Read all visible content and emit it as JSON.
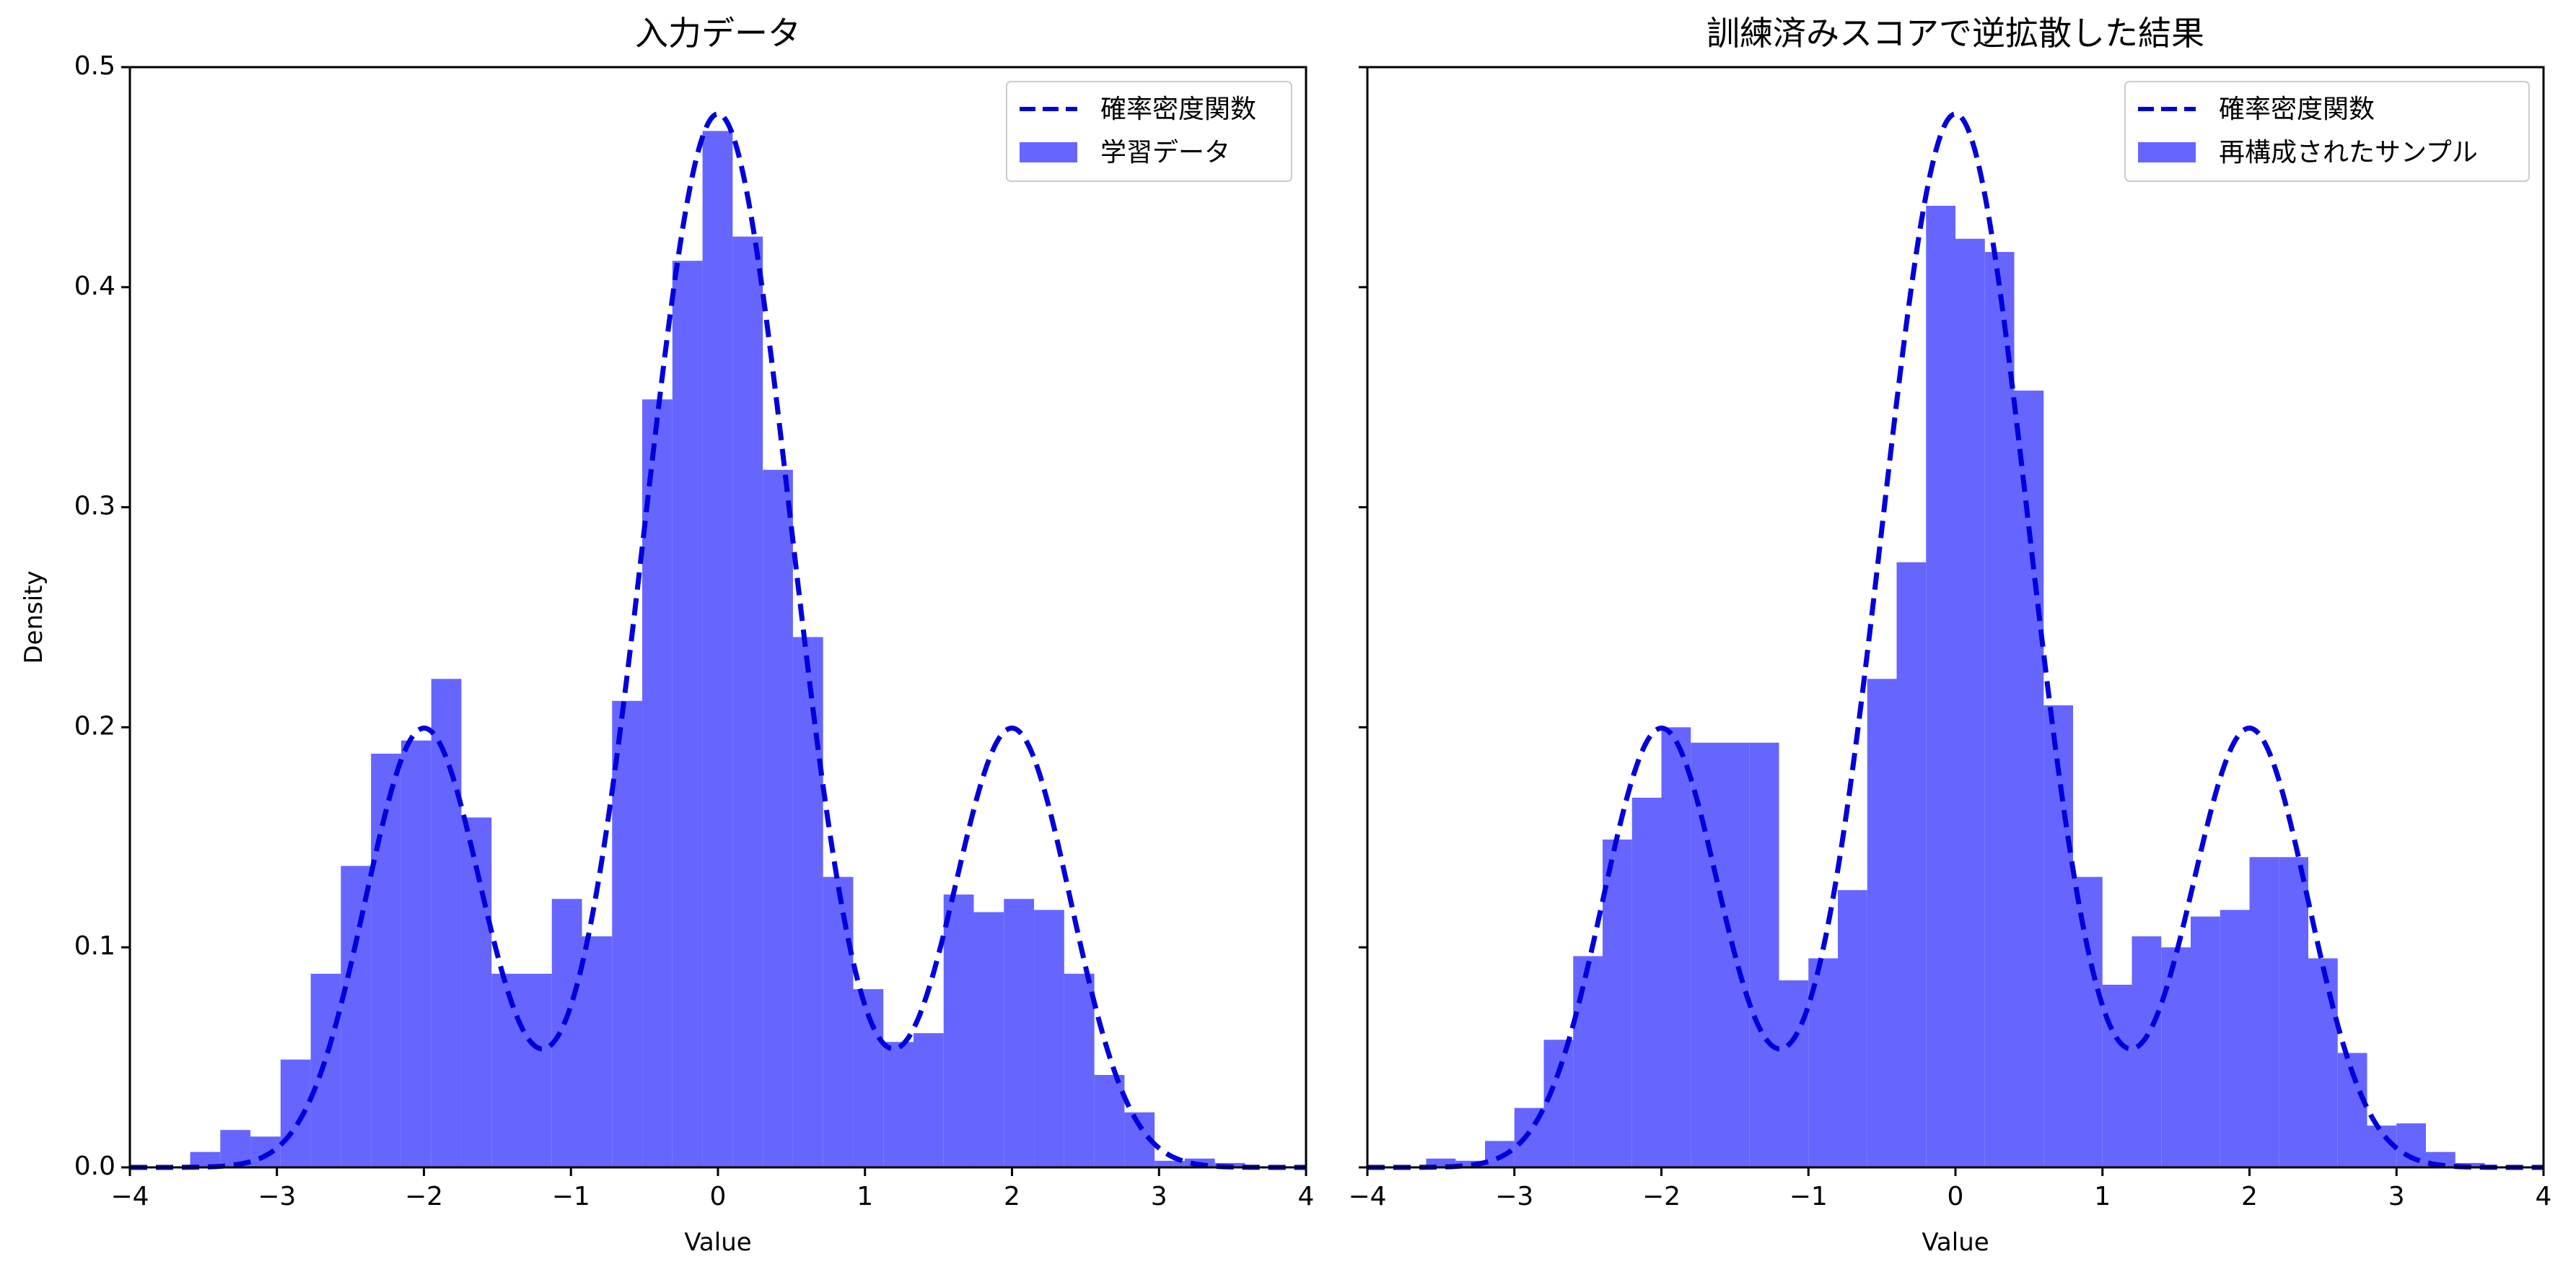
{
  "figure": {
    "colors": {
      "bar": "#6666ff",
      "pdf": "#0000dd",
      "frame": "#000000",
      "background": "#ffffff"
    }
  },
  "chart_data": [
    {
      "type": "bar",
      "title": "入力データ",
      "xlabel": "Value",
      "ylabel": "Density",
      "xlim": [
        -4,
        4
      ],
      "ylim": [
        0.0,
        0.5
      ],
      "xticks": [
        "−4",
        "−3",
        "−2",
        "−1",
        "0",
        "1",
        "2",
        "3",
        "4"
      ],
      "yticks": [
        "0.0",
        "0.1",
        "0.2",
        "0.3",
        "0.4",
        "0.5"
      ],
      "grid": false,
      "legend": {
        "placement": "top-right",
        "entries": [
          "確率密度関数",
          "学習データ"
        ]
      },
      "pdf": {
        "name": "確率密度関数",
        "style": "dashed",
        "components": [
          {
            "mean": -2,
            "std": 0.4,
            "weight": 0.2
          },
          {
            "mean": 0,
            "std": 0.5,
            "weight": 0.6
          },
          {
            "mean": 2,
            "std": 0.4,
            "weight": 0.2
          }
        ]
      },
      "histogram": {
        "name": "学習データ",
        "bin_edges": [
          -3.59,
          -3.385,
          -3.18,
          -2.975,
          -2.77,
          -2.565,
          -2.36,
          -2.155,
          -1.95,
          -1.745,
          -1.54,
          -1.335,
          -1.13,
          -0.925,
          -0.72,
          -0.515,
          -0.31,
          -0.105,
          0.1,
          0.305,
          0.51,
          0.715,
          0.92,
          1.125,
          1.33,
          1.535,
          1.74,
          1.945,
          2.15,
          2.355,
          2.56,
          2.765,
          2.97,
          3.175,
          3.38,
          3.585
        ],
        "values": [
          0.007,
          0.017,
          0.014,
          0.049,
          0.088,
          0.137,
          0.188,
          0.194,
          0.222,
          0.159,
          0.088,
          0.088,
          0.122,
          0.105,
          0.212,
          0.349,
          0.412,
          0.471,
          0.423,
          0.317,
          0.241,
          0.132,
          0.081,
          0.057,
          0.061,
          0.124,
          0.116,
          0.122,
          0.117,
          0.088,
          0.042,
          0.025,
          0.003,
          0.004,
          0.002
        ]
      }
    },
    {
      "type": "bar",
      "title": "訓練済みスコアで逆拡散した結果",
      "xlabel": "Value",
      "ylabel": "",
      "xlim": [
        -4,
        4
      ],
      "ylim": [
        0.0,
        0.5
      ],
      "xticks": [
        "−4",
        "−3",
        "−2",
        "−1",
        "0",
        "1",
        "2",
        "3",
        "4"
      ],
      "yticks": [],
      "grid": false,
      "legend": {
        "placement": "top-right",
        "entries": [
          "確率密度関数",
          "再構成されたサンプル"
        ]
      },
      "pdf": {
        "name": "確率密度関数",
        "style": "dashed",
        "components": [
          {
            "mean": -2,
            "std": 0.4,
            "weight": 0.2
          },
          {
            "mean": 0,
            "std": 0.5,
            "weight": 0.6
          },
          {
            "mean": 2,
            "std": 0.4,
            "weight": 0.2
          }
        ]
      },
      "histogram": {
        "name": "再構成されたサンプル",
        "bin_edges": [
          -3.6,
          -3.4,
          -3.2,
          -3.0,
          -2.8,
          -2.6,
          -2.4,
          -2.2,
          -2.0,
          -1.8,
          -1.6,
          -1.4,
          -1.2,
          -1.0,
          -0.8,
          -0.6,
          -0.4,
          -0.2,
          0.0,
          0.2,
          0.4,
          0.6,
          0.8,
          1.0,
          1.2,
          1.4,
          1.6,
          1.8,
          2.0,
          2.2,
          2.4,
          2.6,
          2.8,
          3.0,
          3.2,
          3.4,
          3.6
        ],
        "values": [
          0.004,
          0.003,
          0.012,
          0.027,
          0.058,
          0.096,
          0.149,
          0.168,
          0.2,
          0.193,
          0.193,
          0.193,
          0.085,
          0.095,
          0.126,
          0.222,
          0.275,
          0.437,
          0.422,
          0.416,
          0.353,
          0.21,
          0.132,
          0.083,
          0.105,
          0.1,
          0.114,
          0.117,
          0.141,
          0.141,
          0.095,
          0.052,
          0.019,
          0.02,
          0.007,
          0.002
        ]
      }
    }
  ]
}
